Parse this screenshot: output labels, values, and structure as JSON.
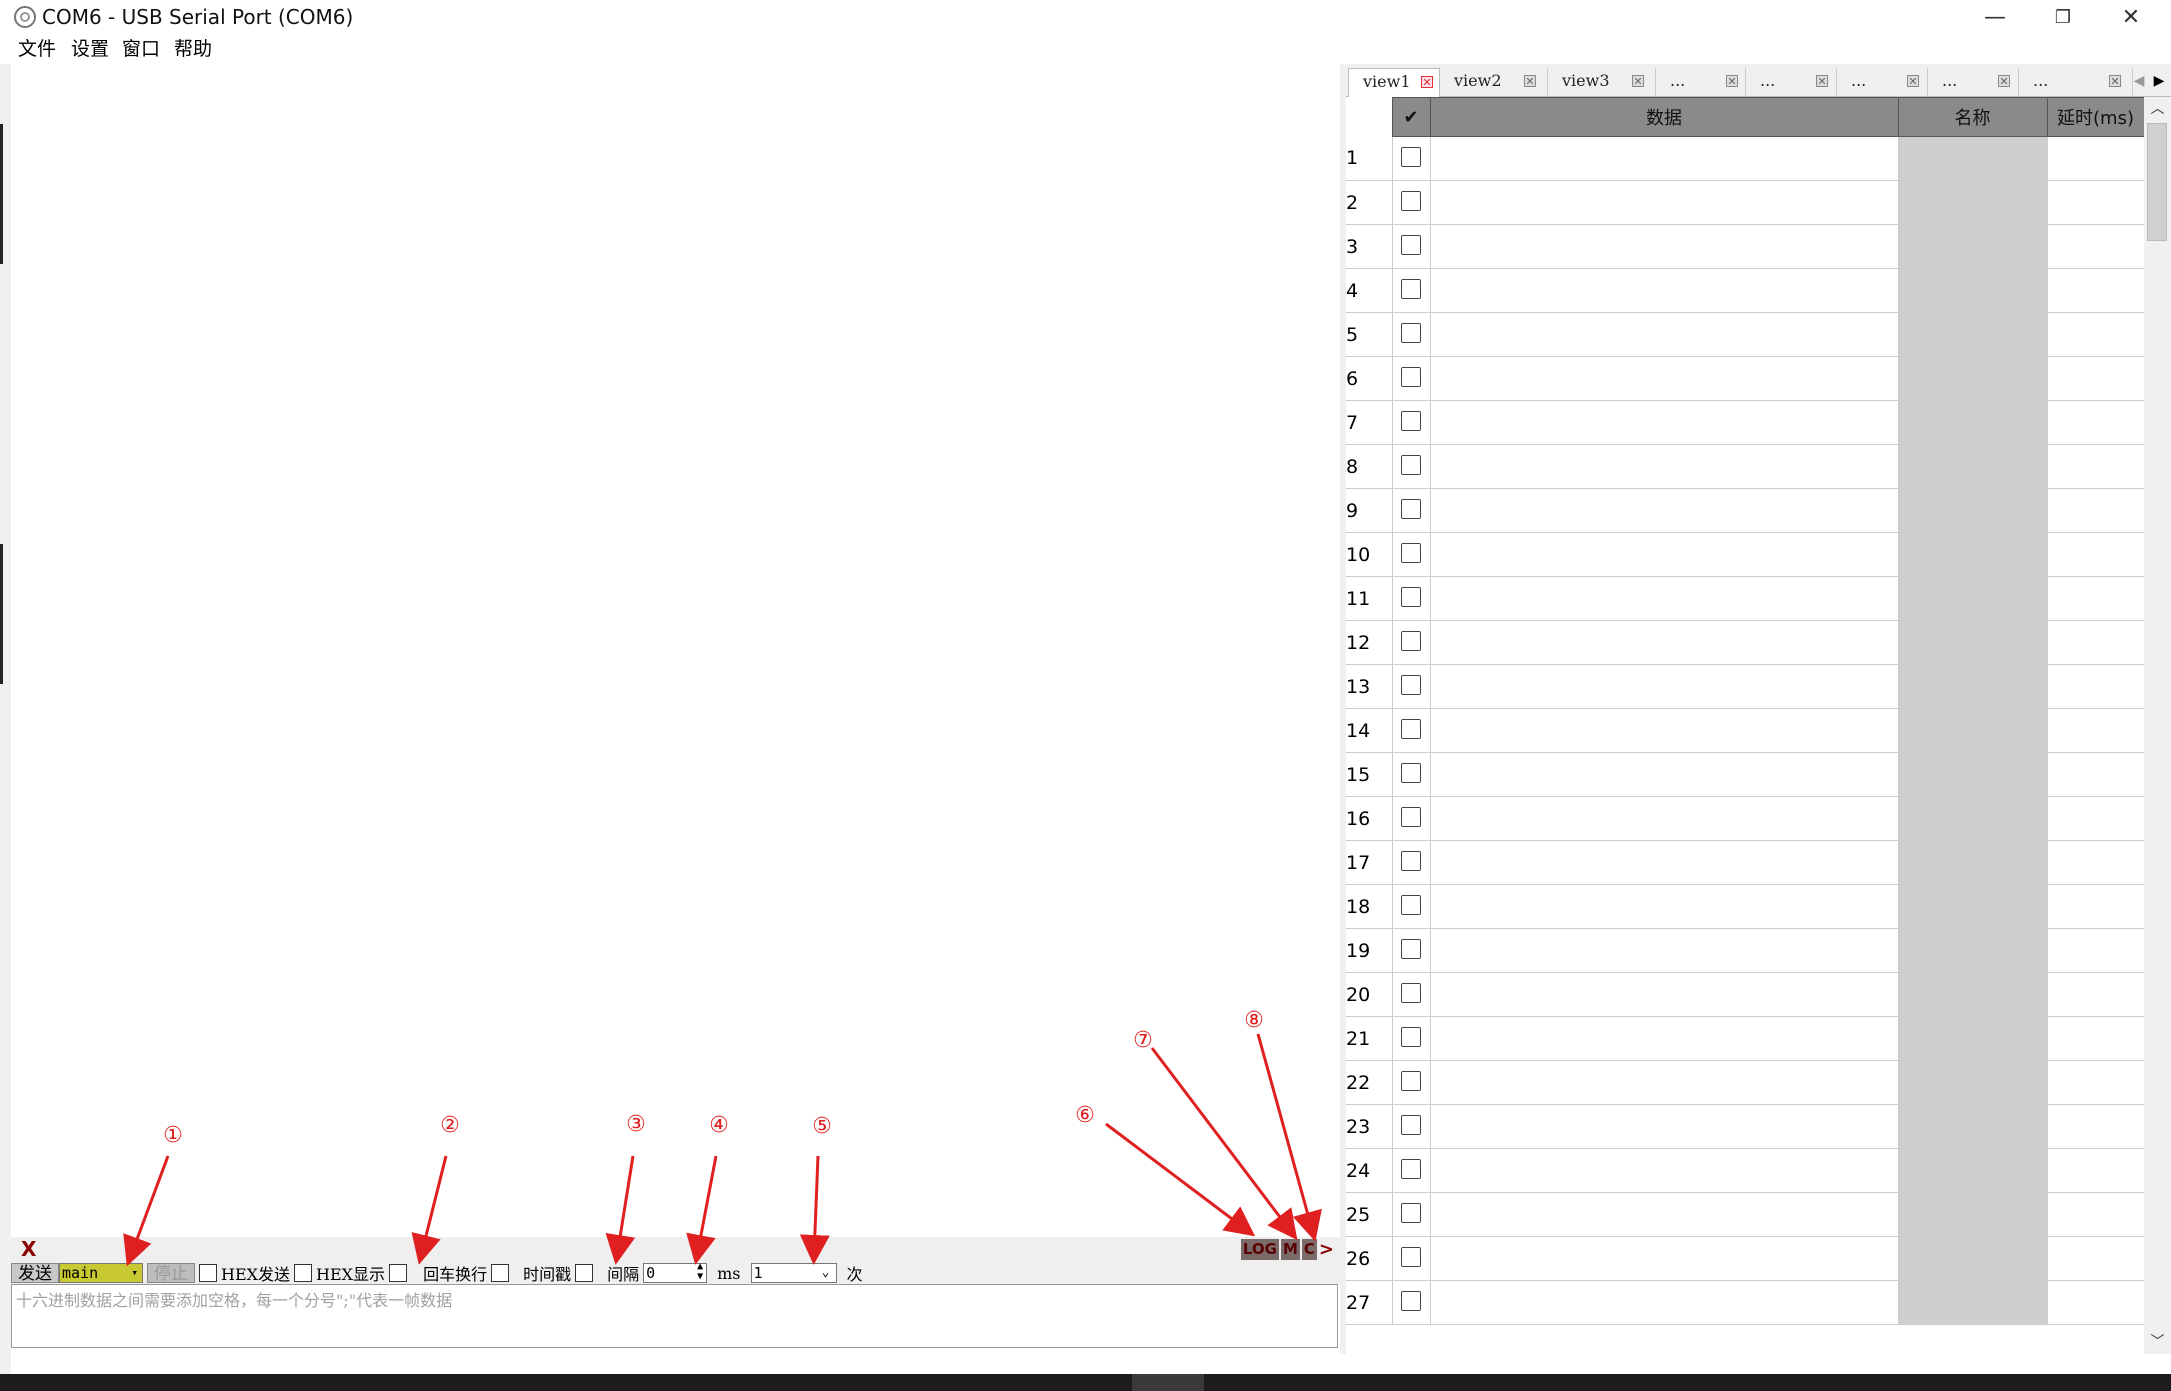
{
  "window": {
    "title": "COM6 - USB Serial Port (COM6)",
    "minimize_glyph": "—",
    "restore_glyph": "❐",
    "close_glyph": "✕"
  },
  "menu": [
    "文件",
    "设置",
    "窗口",
    "帮助"
  ],
  "status_strip": {
    "clear_label": "X",
    "log_label": "LOG",
    "m_label": "M",
    "c_label": "C",
    "more_label": ">"
  },
  "send_toolbar": {
    "send_label": "发送",
    "target_value": "main",
    "stop_label": "停止",
    "hex_send_label": "HEX发送",
    "hex_display_label": "HEX显示",
    "crlf_label": "回车换行",
    "timestamp_label": "时间戳",
    "interval_label": "间隔",
    "interval_value": "0",
    "ms_label": "ms",
    "count_value": "1",
    "count_unit": "次"
  },
  "send_input": {
    "placeholder": "十六进制数据之间需要添加空格，每一个分号\";\"代表一帧数据"
  },
  "annotations": [
    "①",
    "②",
    "③",
    "④",
    "⑤",
    "⑥",
    "⑦",
    "⑧"
  ],
  "annotation_color": "#e02020",
  "tabs": [
    {
      "label": "view1",
      "active": true
    },
    {
      "label": "view2",
      "active": false
    },
    {
      "label": "view3",
      "active": false
    },
    {
      "label": "...",
      "active": false
    },
    {
      "label": "...",
      "active": false
    },
    {
      "label": "...",
      "active": false
    },
    {
      "label": "...",
      "active": false
    },
    {
      "label": "...",
      "active": false
    }
  ],
  "table": {
    "columns": {
      "check": "✔",
      "data": "数据",
      "name": "名称",
      "delay": "延时(ms)"
    },
    "rows": [
      "1",
      "2",
      "3",
      "4",
      "5",
      "6",
      "7",
      "8",
      "9",
      "10",
      "11",
      "12",
      "13",
      "14",
      "15",
      "16",
      "17",
      "18",
      "19",
      "20",
      "21",
      "22",
      "23",
      "24",
      "25",
      "26",
      "27"
    ]
  }
}
